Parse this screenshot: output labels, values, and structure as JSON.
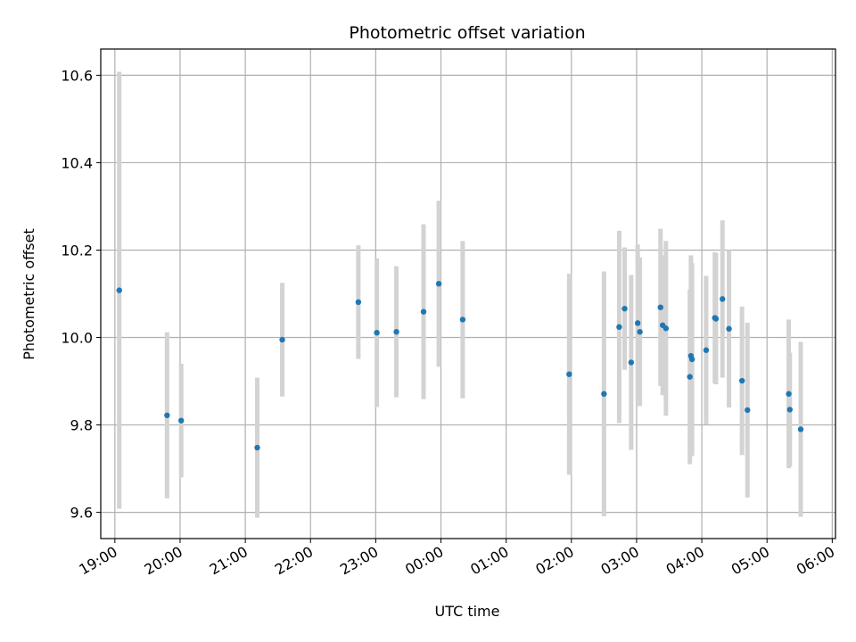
{
  "chart_data": {
    "type": "scatter",
    "title": "Photometric offset variation",
    "xlabel": "UTC time",
    "ylabel": "Photometric offset",
    "grid": true,
    "x_tick_labels": [
      "19:00",
      "20:00",
      "21:00",
      "22:00",
      "23:00",
      "00:00",
      "01:00",
      "02:00",
      "03:00",
      "04:00",
      "05:00",
      "06:00"
    ],
    "y_ticks": [
      9.6,
      9.8,
      10.0,
      10.2,
      10.4,
      10.6
    ],
    "y_tick_labels": [
      "9.6",
      "9.8",
      "10.0",
      "10.2",
      "10.4",
      "10.6"
    ],
    "xlim": [
      "18:47",
      "06:03"
    ],
    "ylim": [
      9.54,
      10.66
    ],
    "colors": {
      "point": "#1f77b4",
      "errorbar": "#d3d3d3",
      "grid": "#b0b0b0"
    },
    "points": [
      {
        "x": "19:04",
        "y": 10.108,
        "err": 0.5
      },
      {
        "x": "19:48",
        "y": 9.822,
        "err": 0.19
      },
      {
        "x": "20:01",
        "y": 9.81,
        "err": 0.13
      },
      {
        "x": "21:11",
        "y": 9.748,
        "err": 0.16
      },
      {
        "x": "21:34",
        "y": 9.995,
        "err": 0.13
      },
      {
        "x": "22:44",
        "y": 10.081,
        "err": 0.13
      },
      {
        "x": "23:01",
        "y": 10.011,
        "err": 0.17
      },
      {
        "x": "23:19",
        "y": 10.013,
        "err": 0.15
      },
      {
        "x": "23:44",
        "y": 10.059,
        "err": 0.2
      },
      {
        "x": "23:58",
        "y": 10.123,
        "err": 0.19
      },
      {
        "x": "00:20",
        "y": 10.041,
        "err": 0.18
      },
      {
        "x": "01:58",
        "y": 9.916,
        "err": 0.23
      },
      {
        "x": "02:30",
        "y": 9.871,
        "err": 0.28
      },
      {
        "x": "02:44",
        "y": 10.024,
        "err": 0.22
      },
      {
        "x": "02:49",
        "y": 10.066,
        "err": 0.14
      },
      {
        "x": "02:55",
        "y": 9.943,
        "err": 0.2
      },
      {
        "x": "03:01",
        "y": 10.033,
        "err": 0.18
      },
      {
        "x": "03:03",
        "y": 10.013,
        "err": 0.17
      },
      {
        "x": "03:22",
        "y": 10.069,
        "err": 0.18
      },
      {
        "x": "03:24",
        "y": 10.028,
        "err": 0.16
      },
      {
        "x": "03:27",
        "y": 10.021,
        "err": 0.2
      },
      {
        "x": "03:49",
        "y": 9.91,
        "err": 0.2
      },
      {
        "x": "03:50",
        "y": 9.958,
        "err": 0.23
      },
      {
        "x": "03:51",
        "y": 9.95,
        "err": 0.22
      },
      {
        "x": "04:04",
        "y": 9.971,
        "err": 0.17
      },
      {
        "x": "04:12",
        "y": 10.045,
        "err": 0.15
      },
      {
        "x": "04:13",
        "y": 10.043,
        "err": 0.15
      },
      {
        "x": "04:19",
        "y": 10.088,
        "err": 0.18
      },
      {
        "x": "04:25",
        "y": 10.02,
        "err": 0.18
      },
      {
        "x": "04:37",
        "y": 9.901,
        "err": 0.17
      },
      {
        "x": "04:42",
        "y": 9.834,
        "err": 0.2
      },
      {
        "x": "05:20",
        "y": 9.871,
        "err": 0.17
      },
      {
        "x": "05:21",
        "y": 9.835,
        "err": 0.13
      },
      {
        "x": "05:31",
        "y": 9.79,
        "err": 0.2
      }
    ]
  }
}
